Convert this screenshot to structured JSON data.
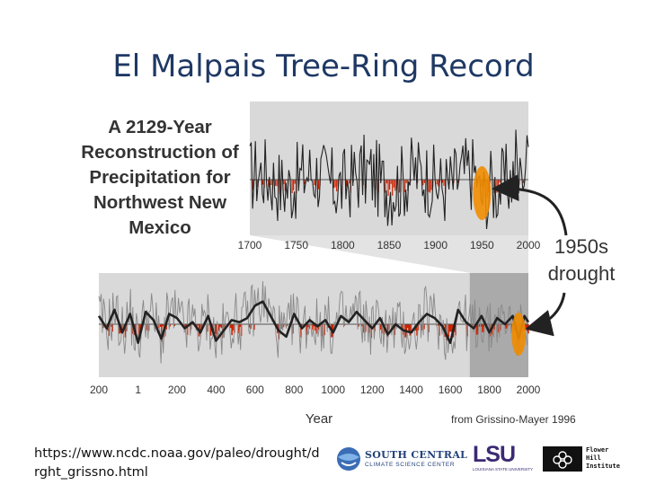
{
  "slide": {
    "title": "El Malpais Tree-Ring Record",
    "url_text": "https://www.ncdc.noaa.gov/paleo/drought/drght_grissno.html"
  },
  "logos": {
    "scc_line1": "SOUTH CENTRAL",
    "scc_line2": "CLIMATE SCIENCE CENTER",
    "lsu_text": "LSU",
    "lsu_sub": "LOUISIANA STATE UNIVERSITY",
    "fhi_text": "Flower\nHill\nInstitute"
  },
  "colors": {
    "title": "#1f3864",
    "panel_bg": "#d9d9d9",
    "highlight_bg": "#aaaaaa",
    "series_line": "#222222",
    "deficit_fill": "#cc2200",
    "drought_marker": "#f08c00",
    "arrow": "#222222"
  },
  "chart_data": [
    {
      "type": "line",
      "title": "A 2129-Year Reconstruction of Precipitation for Northwest New Mexico",
      "xlabel": "",
      "ylabel": "",
      "xlim": [
        1700,
        2000
      ],
      "ylim": [
        -1,
        1
      ],
      "x_ticks": [
        1700,
        1750,
        1800,
        1850,
        1900,
        1950,
        2000
      ],
      "series": [
        {
          "name": "annual precipitation index",
          "color": "#222222",
          "noisy": true,
          "seed": 17
        },
        {
          "name": "below-mean deficit",
          "color": "#cc2200",
          "fill": "below-zero"
        }
      ],
      "annotations": [
        {
          "text": "1950s drought",
          "x": 1950
        }
      ]
    },
    {
      "type": "line",
      "title": "",
      "xlabel": "Year",
      "ylabel": "",
      "xlim": [
        -200,
        2000
      ],
      "ylim": [
        -1,
        1
      ],
      "x_ticks": [
        -200,
        1,
        200,
        400,
        600,
        800,
        1000,
        1200,
        1400,
        1600,
        1800,
        2000
      ],
      "x_tick_labels": [
        "200",
        "1",
        "200",
        "400",
        "600",
        "800",
        "1000",
        "1200",
        "1400",
        "1600",
        "1800",
        "2000"
      ],
      "highlight_range": [
        1700,
        2000
      ],
      "series": [
        {
          "name": "annual values",
          "color": "#888888",
          "noisy": true,
          "seed": 91
        },
        {
          "name": "smoothed record",
          "color": "#222222",
          "x": [
            -200,
            -160,
            -120,
            -80,
            -40,
            1,
            40,
            80,
            120,
            160,
            200,
            240,
            280,
            320,
            360,
            400,
            440,
            480,
            520,
            560,
            600,
            640,
            680,
            720,
            760,
            800,
            840,
            880,
            920,
            960,
            1000,
            1040,
            1080,
            1120,
            1160,
            1200,
            1240,
            1280,
            1320,
            1360,
            1400,
            1440,
            1480,
            1520,
            1560,
            1600,
            1640,
            1680,
            1720,
            1760,
            1800,
            1840,
            1880,
            1920,
            1950,
            1980,
            2000
          ],
          "y": [
            0.2,
            -0.1,
            0.35,
            -0.2,
            0.25,
            -0.45,
            0.3,
            0.1,
            -0.35,
            0.25,
            0.15,
            -0.1,
            0.05,
            -0.2,
            0.2,
            -0.4,
            -0.15,
            0.1,
            0.05,
            0.15,
            0.45,
            0.55,
            0.2,
            -0.15,
            -0.3,
            0.25,
            -0.1,
            0.1,
            -0.05,
            0.1,
            -0.2,
            0.2,
            0.05,
            0.3,
            0.1,
            -0.1,
            0.15,
            -0.25,
            0.0,
            -0.15,
            -0.2,
            0.05,
            0.25,
            0.15,
            -0.05,
            -0.45,
            0.35,
            0.05,
            -0.1,
            0.2,
            -0.2,
            0.15,
            0.0,
            0.2,
            -0.35,
            0.2,
            0.05
          ]
        },
        {
          "name": "below-mean deficit",
          "color": "#cc2200",
          "fill": "below-zero"
        }
      ],
      "annotations": [
        {
          "text": "1950s drought",
          "x": 1950
        },
        {
          "text": "from Grissino-Mayer 1996"
        }
      ]
    }
  ]
}
